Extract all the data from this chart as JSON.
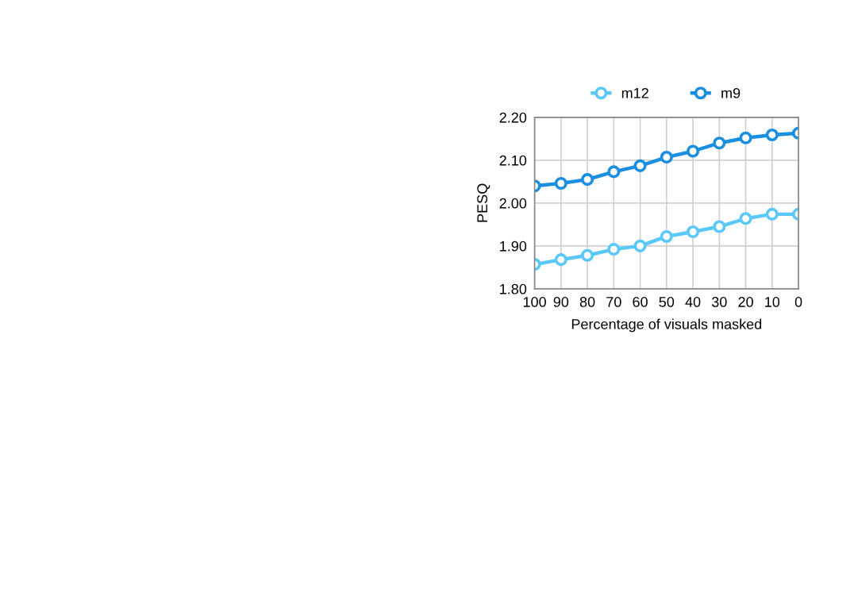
{
  "chart_data": {
    "type": "line",
    "xlabel": "Percentage of visuals masked",
    "ylabel": "PESQ",
    "x": [
      100,
      90,
      80,
      70,
      60,
      50,
      40,
      30,
      20,
      10,
      0
    ],
    "series": [
      {
        "name": "m12",
        "color": "#5ac8fa",
        "values": [
          1.857,
          1.868,
          1.878,
          1.892,
          1.9,
          1.922,
          1.933,
          1.945,
          1.964,
          1.974,
          1.974
        ]
      },
      {
        "name": "m9",
        "color": "#1a8fe0",
        "values": [
          2.04,
          2.046,
          2.055,
          2.073,
          2.087,
          2.107,
          2.121,
          2.14,
          2.152,
          2.159,
          2.163
        ]
      }
    ],
    "xlim": [
      100,
      0
    ],
    "xticks": [
      100,
      90,
      80,
      70,
      60,
      50,
      40,
      30,
      20,
      10,
      0
    ],
    "ylim": [
      1.8,
      2.2
    ],
    "yticks": [
      {
        "value": 1.8,
        "label": "1.80"
      },
      {
        "value": 1.9,
        "label": "1.90"
      },
      {
        "value": 2.0,
        "label": "2.00"
      },
      {
        "value": 2.1,
        "label": "2.10"
      },
      {
        "value": 2.2,
        "label": "2.20"
      }
    ],
    "grid": true,
    "legend": "top",
    "marker": "circle",
    "line_style": "solid"
  }
}
